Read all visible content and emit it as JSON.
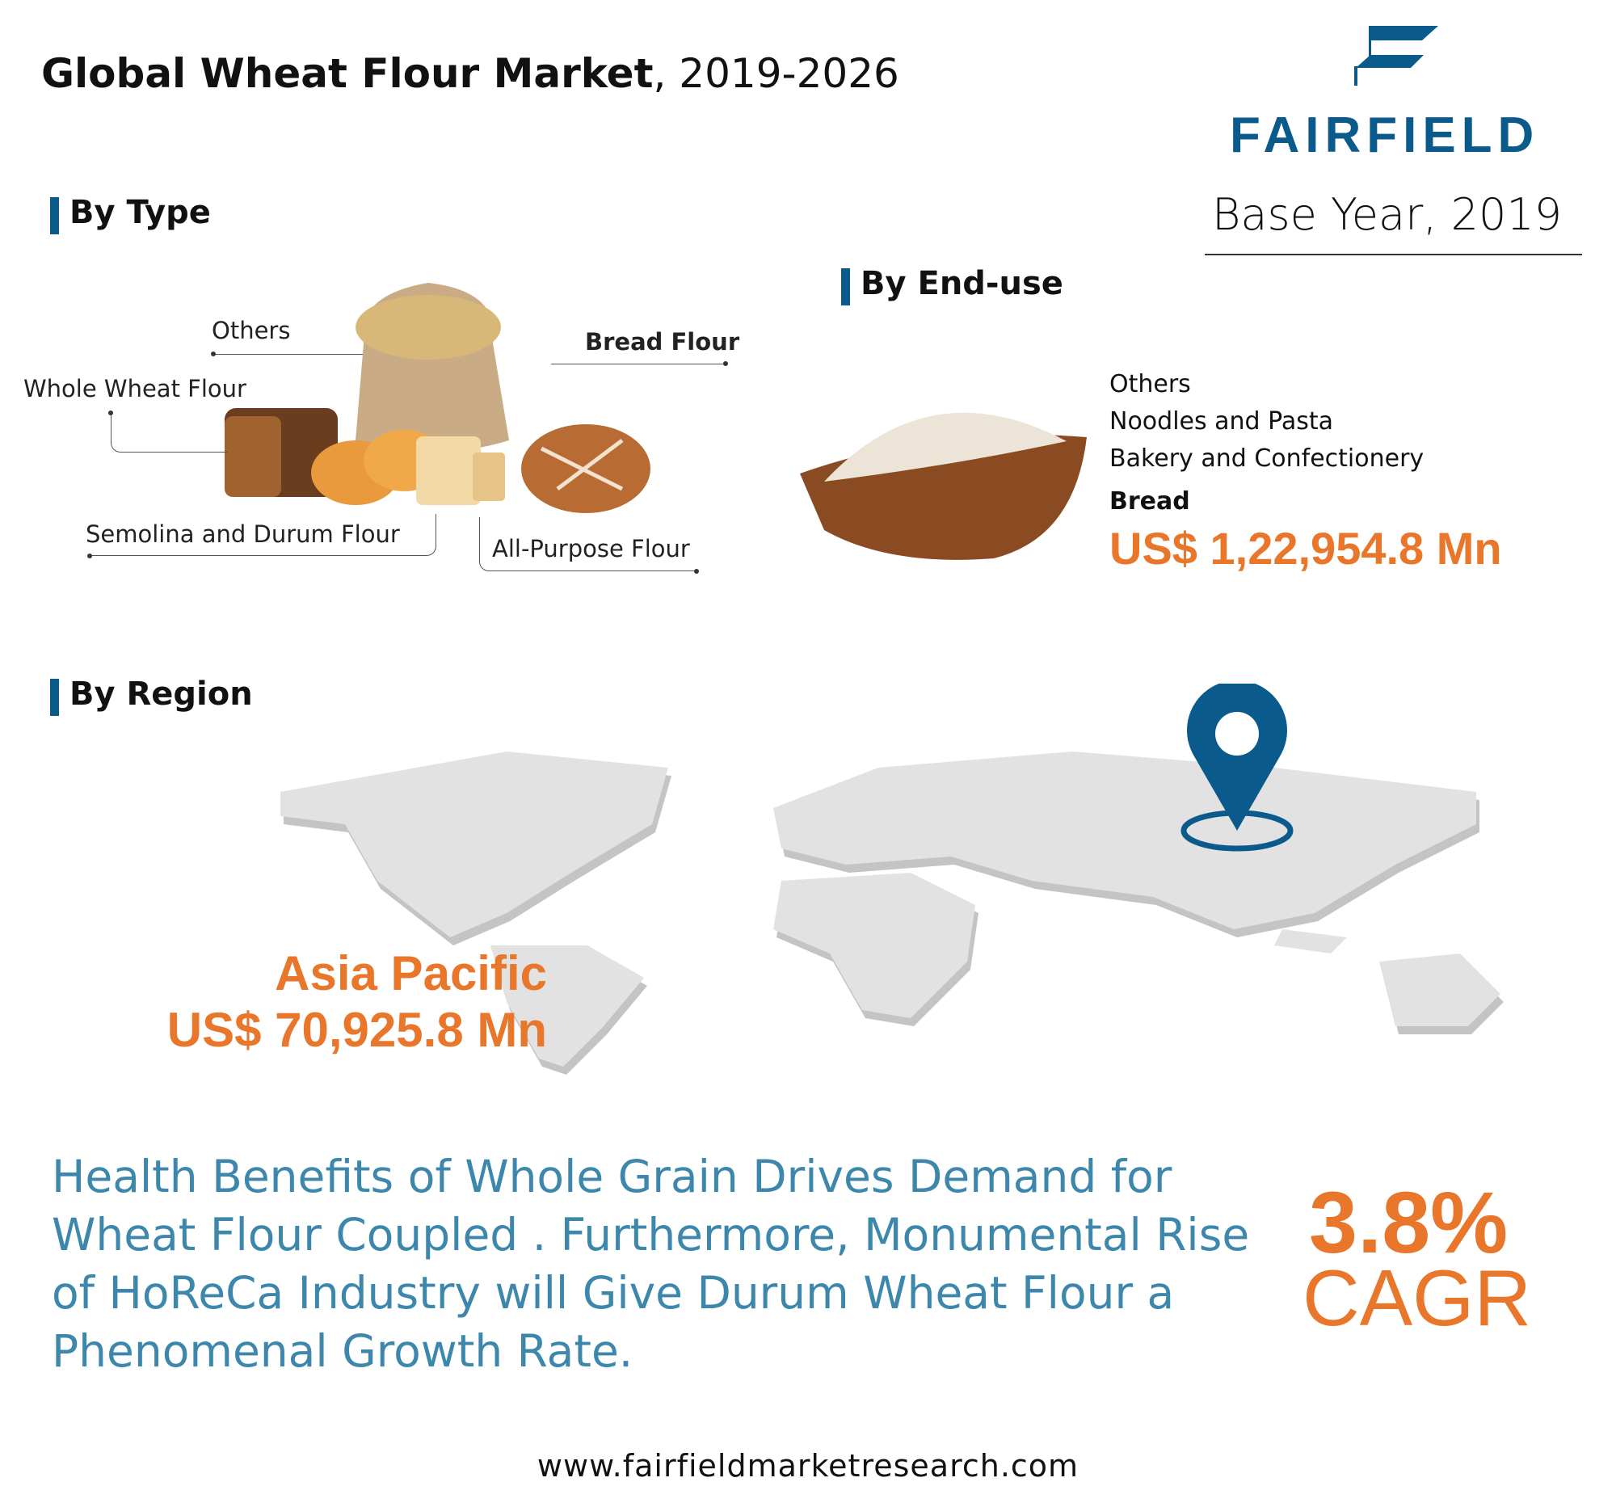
{
  "header": {
    "title_bold": "Global Wheat Flour Market",
    "title_rest": ", 2019-2026",
    "logo_text": "FAIRFIELD",
    "base_year": "Base Year, 2019"
  },
  "by_type": {
    "heading": "By Type",
    "labels": {
      "others": "Others",
      "bread_flour": "Bread Flour",
      "whole_wheat": "Whole Wheat Flour",
      "semolina": "Semolina and Durum Flour",
      "all_purpose": "All-Purpose Flour"
    }
  },
  "by_end_use": {
    "heading": "By End-use",
    "items": [
      "Others",
      "Noodles and Pasta",
      "Bakery and Confectionery"
    ],
    "highlight": "Bread",
    "value": "US$ 1,22,954.8 Mn"
  },
  "by_region": {
    "heading": "By Region",
    "region": "Asia Pacific",
    "value": "US$ 70,925.8 Mn"
  },
  "summary": "Health Benefits of Whole Grain Drives Demand for Wheat Flour Coupled . Furthermore, Monumental Rise of HoReCa Industry will Give Durum Wheat Flour a Phenomenal Growth Rate.",
  "cagr": {
    "value": "3.8%",
    "label": "CAGR"
  },
  "footer": {
    "url": "www.fairfieldmarketresearch.com"
  },
  "colors": {
    "brand_blue": "#0b5a8c",
    "accent_orange": "#e8762b",
    "text_teal": "#3c87ab",
    "map_grey": "#dcdcdc"
  }
}
